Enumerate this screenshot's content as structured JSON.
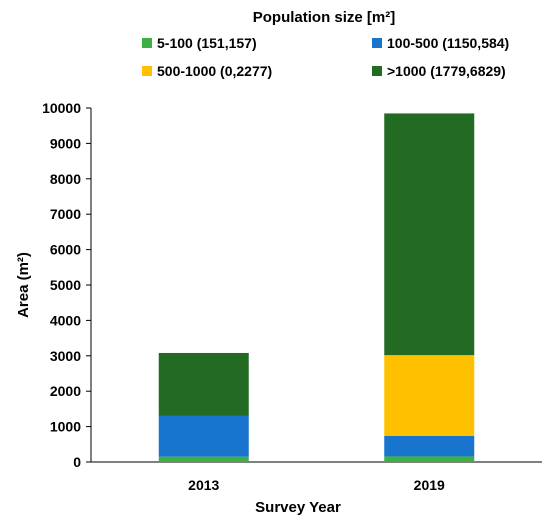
{
  "chart_data": {
    "type": "bar",
    "stacked": true,
    "categories": [
      "2013",
      "2019"
    ],
    "series": [
      {
        "name": "5-100 (151,157)",
        "values": [
          151,
          157
        ],
        "color": "#3cb043"
      },
      {
        "name": "100-500 (1150,584)",
        "values": [
          1150,
          584
        ],
        "color": "#1874cd"
      },
      {
        "name": "500-1000 (0,2277)",
        "values": [
          0,
          2277
        ],
        "color": "#ffc000"
      },
      {
        "name": ">1000 (1779,6829)",
        "values": [
          1779,
          6829
        ],
        "color": "#236b23"
      }
    ],
    "legend_title": "Population size [m²]",
    "legend_position": "top",
    "xlabel": "Survey Year",
    "ylabel": "Area (m²)",
    "ylim": [
      0,
      10000
    ],
    "yticks": [
      "0",
      "1000",
      "2000",
      "3000",
      "4000",
      "5000",
      "6000",
      "7000",
      "8000",
      "9000",
      "10000"
    ],
    "grid": false
  }
}
